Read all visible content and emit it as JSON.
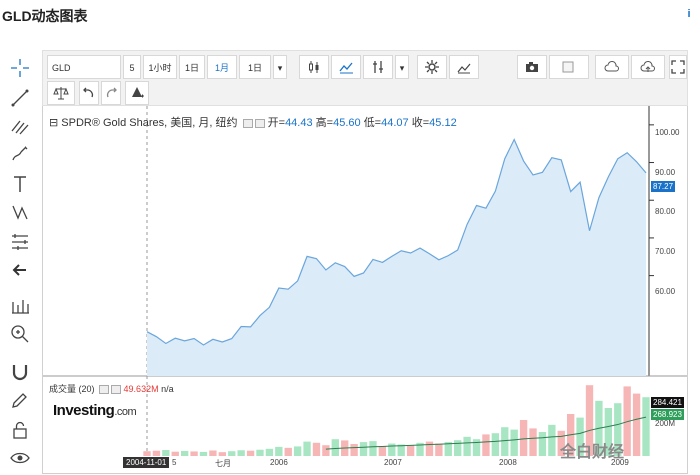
{
  "header": {
    "title": "GLD动态图表",
    "info_icon": "i"
  },
  "toolbar": {
    "symbol": "GLD",
    "intervals": [
      "5",
      "1小时",
      "1日",
      "1月",
      "1日"
    ],
    "active_interval": "1月"
  },
  "legend": {
    "name": "SPDR® Gold Shares, 美国, 月, 纽约",
    "open_label": "开=",
    "open": "44.43",
    "high_label": "高=",
    "high": "45.60",
    "low_label": "低=",
    "low": "44.07",
    "close_label": "收=",
    "close": "45.12"
  },
  "watermark": {
    "brand": "Investing",
    "suffix": ".com"
  },
  "volume_legend": {
    "label": "成交量 (20)",
    "value": "49.632M",
    "ma": "n/a"
  },
  "price_axis": [
    "100.00",
    "90.00",
    "80.00",
    "70.00",
    "60.00"
  ],
  "price_tag": "87.27",
  "volume_axis": [
    "200M"
  ],
  "volume_tags": [
    "284.421",
    "268.923"
  ],
  "x_axis": [
    "5",
    "七月",
    "2006",
    "2007",
    "2008",
    "2009"
  ],
  "crosshair_date": "2004-11-01",
  "footer_brand": "全白财经",
  "colors": {
    "accent": "#1a73c8",
    "area_fill": "#dcebf8",
    "area_line": "#6aa6dc",
    "vol_up": "#a8e6c3",
    "vol_down": "#f6b6b6"
  },
  "chart_data": {
    "type": "area",
    "price_points": [
      {
        "x": "2004-11",
        "y": 45.12
      },
      {
        "x": "2004-12",
        "y": 43.8
      },
      {
        "x": "2005-01",
        "y": 42.0
      },
      {
        "x": "2005-02",
        "y": 43.4
      },
      {
        "x": "2005-03",
        "y": 42.7
      },
      {
        "x": "2005-04",
        "y": 43.3
      },
      {
        "x": "2005-05",
        "y": 41.6
      },
      {
        "x": "2005-06",
        "y": 43.1
      },
      {
        "x": "2005-07",
        "y": 42.4
      },
      {
        "x": "2005-08",
        "y": 43.3
      },
      {
        "x": "2005-09",
        "y": 46.5
      },
      {
        "x": "2005-10",
        "y": 46.4
      },
      {
        "x": "2005-11",
        "y": 49.4
      },
      {
        "x": "2005-12",
        "y": 51.6
      },
      {
        "x": "2006-01",
        "y": 56.7
      },
      {
        "x": "2006-02",
        "y": 56.4
      },
      {
        "x": "2006-03",
        "y": 58.6
      },
      {
        "x": "2006-04",
        "y": 65.1
      },
      {
        "x": "2006-05",
        "y": 64.5
      },
      {
        "x": "2006-06",
        "y": 61.5
      },
      {
        "x": "2006-07",
        "y": 63.4
      },
      {
        "x": "2006-08",
        "y": 62.4
      },
      {
        "x": "2006-09",
        "y": 59.8
      },
      {
        "x": "2006-10",
        "y": 60.7
      },
      {
        "x": "2006-11",
        "y": 64.3
      },
      {
        "x": "2006-12",
        "y": 63.5
      },
      {
        "x": "2007-01",
        "y": 65.1
      },
      {
        "x": "2007-02",
        "y": 66.6
      },
      {
        "x": "2007-03",
        "y": 66.0
      },
      {
        "x": "2007-04",
        "y": 67.3
      },
      {
        "x": "2007-05",
        "y": 65.8
      },
      {
        "x": "2007-06",
        "y": 64.2
      },
      {
        "x": "2007-07",
        "y": 65.3
      },
      {
        "x": "2007-08",
        "y": 66.8
      },
      {
        "x": "2007-09",
        "y": 73.6
      },
      {
        "x": "2007-10",
        "y": 78.6
      },
      {
        "x": "2007-11",
        "y": 77.9
      },
      {
        "x": "2007-12",
        "y": 82.4
      },
      {
        "x": "2008-01",
        "y": 91.0
      },
      {
        "x": "2008-02",
        "y": 96.1
      },
      {
        "x": "2008-03",
        "y": 90.4
      },
      {
        "x": "2008-04",
        "y": 86.7
      },
      {
        "x": "2008-05",
        "y": 87.4
      },
      {
        "x": "2008-06",
        "y": 91.3
      },
      {
        "x": "2008-07",
        "y": 90.7
      },
      {
        "x": "2008-08",
        "y": 82.3
      },
      {
        "x": "2008-09",
        "y": 84.8
      },
      {
        "x": "2008-10",
        "y": 71.9
      },
      {
        "x": "2008-11",
        "y": 80.7
      },
      {
        "x": "2008-12",
        "y": 86.2
      },
      {
        "x": "2009-01",
        "y": 91.0
      },
      {
        "x": "2009-02",
        "y": 92.6
      },
      {
        "x": "2009-03",
        "y": 90.2
      },
      {
        "x": "2009-04",
        "y": 87.27
      }
    ],
    "volume_bars": [
      {
        "v": 20,
        "up": false
      },
      {
        "v": 22,
        "up": false
      },
      {
        "v": 25,
        "up": true
      },
      {
        "v": 18,
        "up": false
      },
      {
        "v": 21,
        "up": true
      },
      {
        "v": 19,
        "up": false
      },
      {
        "v": 17,
        "up": true
      },
      {
        "v": 23,
        "up": false
      },
      {
        "v": 16,
        "up": false
      },
      {
        "v": 20,
        "up": true
      },
      {
        "v": 24,
        "up": true
      },
      {
        "v": 22,
        "up": false
      },
      {
        "v": 26,
        "up": true
      },
      {
        "v": 30,
        "up": true
      },
      {
        "v": 38,
        "up": true
      },
      {
        "v": 34,
        "up": false
      },
      {
        "v": 40,
        "up": true
      },
      {
        "v": 60,
        "up": true
      },
      {
        "v": 55,
        "up": false
      },
      {
        "v": 45,
        "up": false
      },
      {
        "v": 70,
        "up": true
      },
      {
        "v": 65,
        "up": false
      },
      {
        "v": 50,
        "up": false
      },
      {
        "v": 58,
        "up": true
      },
      {
        "v": 62,
        "up": true
      },
      {
        "v": 40,
        "up": false
      },
      {
        "v": 52,
        "up": true
      },
      {
        "v": 48,
        "up": true
      },
      {
        "v": 44,
        "up": false
      },
      {
        "v": 55,
        "up": true
      },
      {
        "v": 60,
        "up": false
      },
      {
        "v": 52,
        "up": false
      },
      {
        "v": 58,
        "up": true
      },
      {
        "v": 66,
        "up": true
      },
      {
        "v": 80,
        "up": true
      },
      {
        "v": 70,
        "up": true
      },
      {
        "v": 90,
        "up": false
      },
      {
        "v": 95,
        "up": true
      },
      {
        "v": 120,
        "up": true
      },
      {
        "v": 110,
        "up": true
      },
      {
        "v": 150,
        "up": false
      },
      {
        "v": 115,
        "up": false
      },
      {
        "v": 100,
        "up": true
      },
      {
        "v": 130,
        "up": true
      },
      {
        "v": 105,
        "up": false
      },
      {
        "v": 175,
        "up": false
      },
      {
        "v": 160,
        "up": true
      },
      {
        "v": 295,
        "up": false
      },
      {
        "v": 230,
        "up": true
      },
      {
        "v": 200,
        "up": true
      },
      {
        "v": 220,
        "up": true
      },
      {
        "v": 290,
        "up": false
      },
      {
        "v": 260,
        "up": false
      },
      {
        "v": 245,
        "up": true
      }
    ],
    "ylim": [
      40,
      105
    ],
    "volume_ylim": [
      0,
      300
    ]
  }
}
